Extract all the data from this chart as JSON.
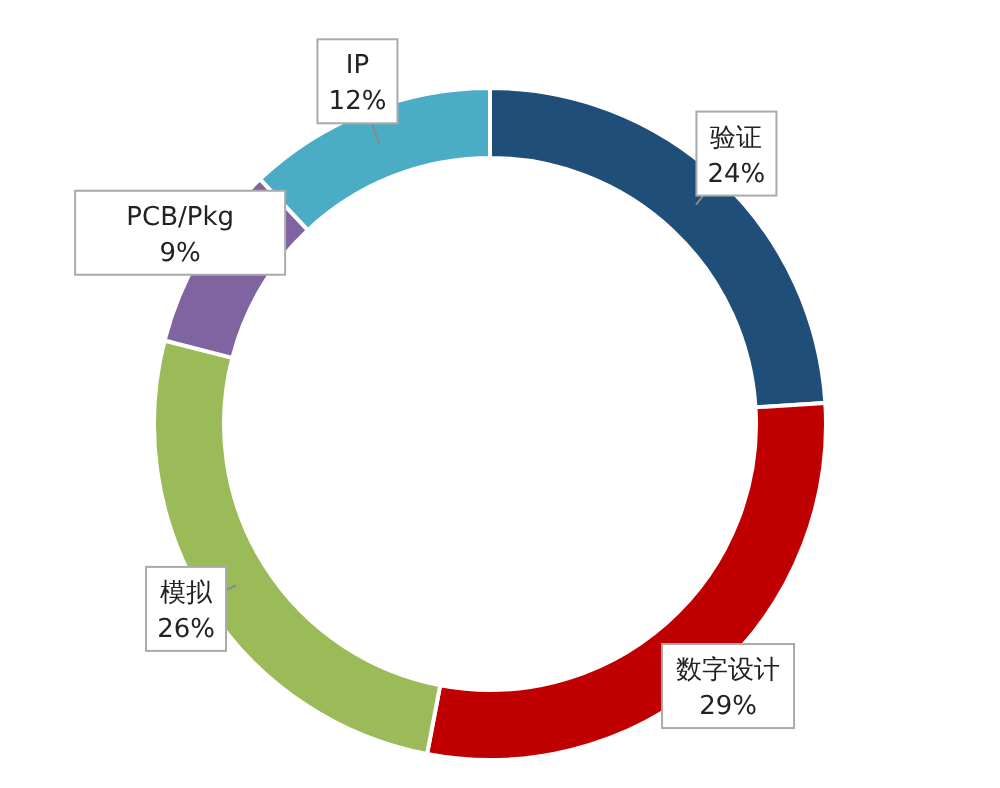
{
  "chart_data": {
    "type": "donut",
    "categories": [
      "验证",
      "数字设计",
      "模拟",
      "PCB/Pkg",
      "IP"
    ],
    "values": [
      24,
      29,
      26,
      9,
      12
    ],
    "colors": [
      "#1f4e79",
      "#c00000",
      "#9bbb59",
      "#8064a2",
      "#4bacc6"
    ],
    "value_labels": [
      "24%",
      "29%",
      "26%",
      "9%",
      "12%"
    ]
  }
}
